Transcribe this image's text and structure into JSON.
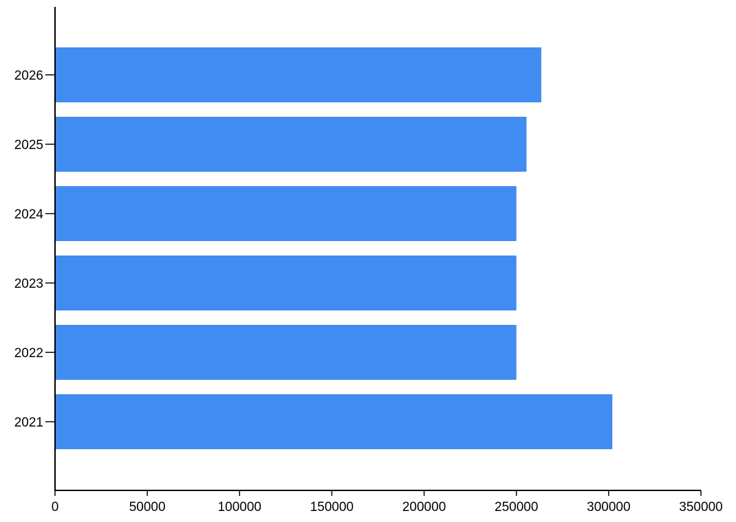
{
  "chart_data": {
    "type": "bar",
    "orientation": "horizontal",
    "categories": [
      "2021",
      "2022",
      "2023",
      "2024",
      "2025",
      "2026"
    ],
    "values": [
      302000,
      250000,
      250000,
      250000,
      255500,
      263500
    ],
    "title": "",
    "xlabel": "",
    "ylabel": "",
    "xlim": [
      0,
      350000
    ],
    "x_ticks": [
      0,
      50000,
      100000,
      150000,
      200000,
      250000,
      300000,
      350000
    ],
    "x_tick_labels": [
      "0",
      "50000",
      "100000",
      "150000",
      "200000",
      "250000",
      "300000",
      "350000"
    ],
    "grid": false,
    "legend": "none",
    "bar_color": "#418cf0"
  }
}
